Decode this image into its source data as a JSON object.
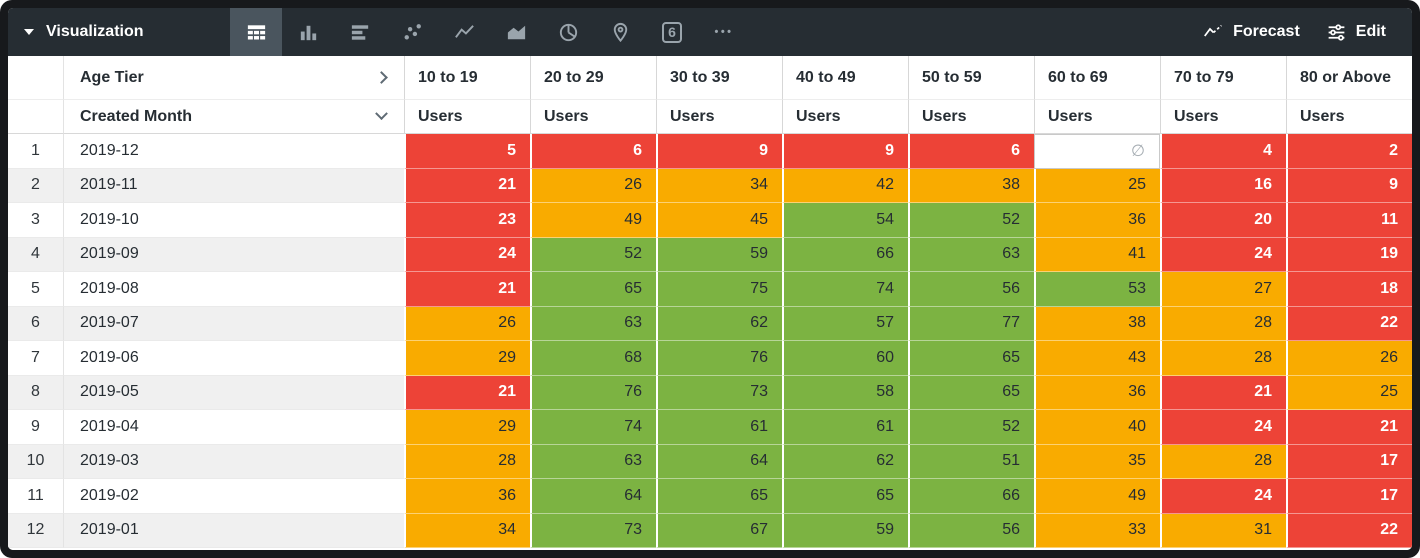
{
  "toolbar": {
    "title": "Visualization",
    "collapse_icon": "caret-down",
    "selected_vis": "table",
    "vis_types": [
      {
        "name": "table",
        "selected": true
      },
      {
        "name": "column",
        "selected": false
      },
      {
        "name": "bar",
        "selected": false
      },
      {
        "name": "scatter",
        "selected": false
      },
      {
        "name": "line",
        "selected": false
      },
      {
        "name": "area",
        "selected": false
      },
      {
        "name": "pie",
        "selected": false
      },
      {
        "name": "map",
        "selected": false
      },
      {
        "name": "single-value",
        "selected": false
      },
      {
        "name": "more",
        "selected": false
      }
    ],
    "single_value_glyph": "6",
    "more_icon": "•••",
    "forecast_label": "Forecast",
    "edit_label": "Edit"
  },
  "colors": {
    "red": "#ed4337",
    "orange": "#f9ab00",
    "green": "#7cb342",
    "toolbar_bg": "#262d33",
    "selected_vis_bg": "#4a555e"
  },
  "table": {
    "pivot_field": "Age Tier",
    "pivot_expand_icon": "chevron-right",
    "dimension_field": "Created Month",
    "dimension_sort_icon": "chevron-down",
    "measure_label": "Users",
    "null_symbol": "∅",
    "pivot_values": [
      "10 to 19",
      "20 to 29",
      "30 to 39",
      "40 to 49",
      "50 to 59",
      "60 to 69",
      "70 to 79",
      "80 or Above"
    ],
    "rows": [
      {
        "n": "1",
        "month": "2019-12",
        "values": [
          "5",
          "6",
          "9",
          "9",
          "6",
          "",
          "4",
          "2"
        ],
        "colors": [
          "red",
          "red",
          "red",
          "red",
          "red",
          "null",
          "red",
          "red"
        ]
      },
      {
        "n": "2",
        "month": "2019-11",
        "values": [
          "21",
          "26",
          "34",
          "42",
          "38",
          "25",
          "16",
          "9"
        ],
        "colors": [
          "red",
          "orange",
          "orange",
          "orange",
          "orange",
          "orange",
          "red",
          "red"
        ]
      },
      {
        "n": "3",
        "month": "2019-10",
        "values": [
          "23",
          "49",
          "45",
          "54",
          "52",
          "36",
          "20",
          "11"
        ],
        "colors": [
          "red",
          "orange",
          "orange",
          "green",
          "green",
          "orange",
          "red",
          "red"
        ]
      },
      {
        "n": "4",
        "month": "2019-09",
        "values": [
          "24",
          "52",
          "59",
          "66",
          "63",
          "41",
          "24",
          "19"
        ],
        "colors": [
          "red",
          "green",
          "green",
          "green",
          "green",
          "orange",
          "red",
          "red"
        ]
      },
      {
        "n": "5",
        "month": "2019-08",
        "values": [
          "21",
          "65",
          "75",
          "74",
          "56",
          "53",
          "27",
          "18"
        ],
        "colors": [
          "red",
          "green",
          "green",
          "green",
          "green",
          "green",
          "orange",
          "red"
        ]
      },
      {
        "n": "6",
        "month": "2019-07",
        "values": [
          "26",
          "63",
          "62",
          "57",
          "77",
          "38",
          "28",
          "22"
        ],
        "colors": [
          "orange",
          "green",
          "green",
          "green",
          "green",
          "orange",
          "orange",
          "red"
        ]
      },
      {
        "n": "7",
        "month": "2019-06",
        "values": [
          "29",
          "68",
          "76",
          "60",
          "65",
          "43",
          "28",
          "26"
        ],
        "colors": [
          "orange",
          "green",
          "green",
          "green",
          "green",
          "orange",
          "orange",
          "orange"
        ]
      },
      {
        "n": "8",
        "month": "2019-05",
        "values": [
          "21",
          "76",
          "73",
          "58",
          "65",
          "36",
          "21",
          "25"
        ],
        "colors": [
          "red",
          "green",
          "green",
          "green",
          "green",
          "orange",
          "red",
          "orange"
        ]
      },
      {
        "n": "9",
        "month": "2019-04",
        "values": [
          "29",
          "74",
          "61",
          "61",
          "52",
          "40",
          "24",
          "21"
        ],
        "colors": [
          "orange",
          "green",
          "green",
          "green",
          "green",
          "orange",
          "red",
          "red"
        ]
      },
      {
        "n": "10",
        "month": "2019-03",
        "values": [
          "28",
          "63",
          "64",
          "62",
          "51",
          "35",
          "28",
          "17"
        ],
        "colors": [
          "orange",
          "green",
          "green",
          "green",
          "green",
          "orange",
          "orange",
          "red"
        ]
      },
      {
        "n": "11",
        "month": "2019-02",
        "values": [
          "36",
          "64",
          "65",
          "65",
          "66",
          "49",
          "24",
          "17"
        ],
        "colors": [
          "orange",
          "green",
          "green",
          "green",
          "green",
          "orange",
          "red",
          "red"
        ]
      },
      {
        "n": "12",
        "month": "2019-01",
        "values": [
          "34",
          "73",
          "67",
          "59",
          "56",
          "33",
          "31",
          "22"
        ],
        "colors": [
          "orange",
          "green",
          "green",
          "green",
          "green",
          "orange",
          "orange",
          "red"
        ]
      }
    ]
  },
  "chart_data": {
    "type": "table",
    "row_field": "Created Month",
    "column_field": "Age Tier",
    "measure": "Users",
    "columns": [
      "10 to 19",
      "20 to 29",
      "30 to 39",
      "40 to 49",
      "50 to 59",
      "60 to 69",
      "70 to 79",
      "80 or Above"
    ],
    "rows": [
      "2019-12",
      "2019-11",
      "2019-10",
      "2019-09",
      "2019-08",
      "2019-07",
      "2019-06",
      "2019-05",
      "2019-04",
      "2019-03",
      "2019-02",
      "2019-01"
    ],
    "values": [
      [
        5,
        6,
        9,
        9,
        6,
        null,
        4,
        2
      ],
      [
        21,
        26,
        34,
        42,
        38,
        25,
        16,
        9
      ],
      [
        23,
        49,
        45,
        54,
        52,
        36,
        20,
        11
      ],
      [
        24,
        52,
        59,
        66,
        63,
        41,
        24,
        19
      ],
      [
        21,
        65,
        75,
        74,
        56,
        53,
        27,
        18
      ],
      [
        26,
        63,
        62,
        57,
        77,
        38,
        28,
        22
      ],
      [
        29,
        68,
        76,
        60,
        65,
        43,
        28,
        26
      ],
      [
        21,
        76,
        73,
        58,
        65,
        36,
        21,
        25
      ],
      [
        29,
        74,
        61,
        61,
        52,
        40,
        24,
        21
      ],
      [
        28,
        63,
        64,
        62,
        51,
        35,
        28,
        17
      ],
      [
        36,
        64,
        65,
        65,
        66,
        49,
        24,
        17
      ],
      [
        34,
        73,
        67,
        59,
        56,
        33,
        31,
        22
      ]
    ]
  }
}
